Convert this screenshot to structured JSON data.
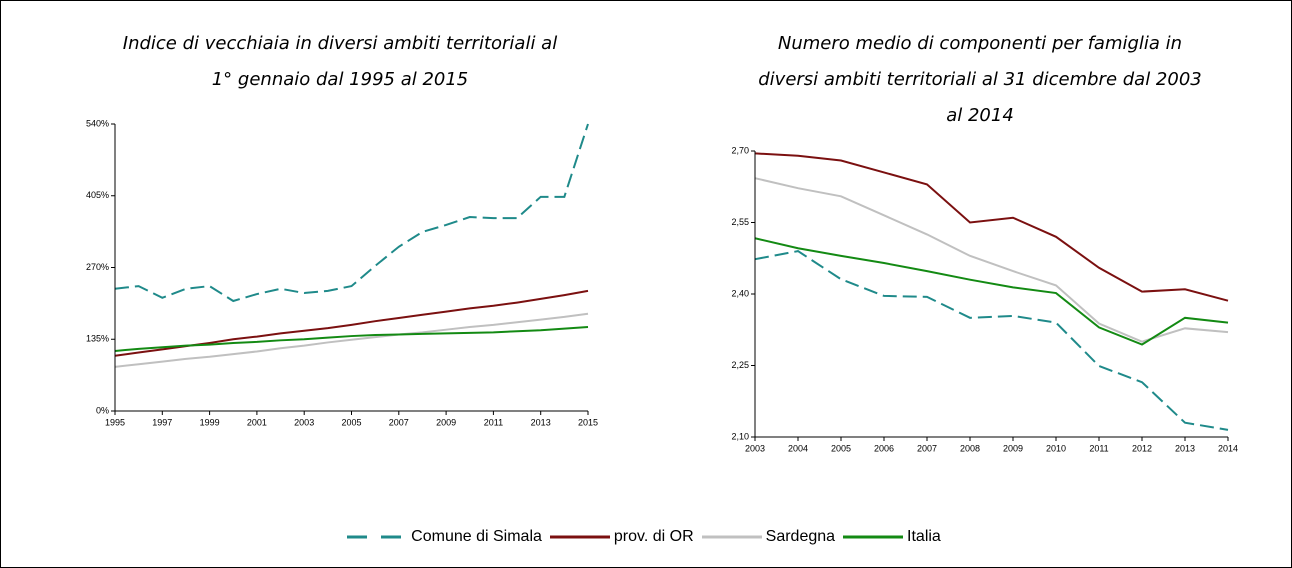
{
  "chart_data": [
    {
      "type": "line",
      "title": "Indice di vecchiaia in diversi ambiti territoriali al 1° gennaio dal 1995 al 2015",
      "x": [
        1995,
        1996,
        1997,
        1998,
        1999,
        2000,
        2001,
        2002,
        2003,
        2004,
        2005,
        2006,
        2007,
        2008,
        2009,
        2010,
        2011,
        2012,
        2013,
        2014,
        2015
      ],
      "xlim": [
        1995,
        2015
      ],
      "xticks": [
        1995,
        1997,
        1999,
        2001,
        2003,
        2005,
        2007,
        2009,
        2011,
        2013,
        2015
      ],
      "ylim": [
        0,
        540
      ],
      "yticks": [
        {
          "value": 0,
          "label": "0%"
        },
        {
          "value": 135,
          "label": "135%"
        },
        {
          "value": 270,
          "label": "270%"
        },
        {
          "value": 405,
          "label": "405%"
        },
        {
          "value": 540,
          "label": "540%"
        }
      ],
      "series": [
        {
          "name": "Comune di Simala",
          "color": "#1f8a8a",
          "style": "dashed",
          "values": [
            230,
            235,
            213,
            230,
            235,
            207,
            220,
            230,
            222,
            226,
            235,
            273,
            309,
            337,
            350,
            365,
            363,
            363,
            403,
            403,
            540
          ]
        },
        {
          "name": "prov. di OR",
          "color": "#7b1010",
          "style": "solid",
          "values": [
            104,
            110,
            116,
            122,
            128,
            135,
            140,
            146,
            151,
            156,
            162,
            169,
            175,
            181,
            187,
            193,
            198,
            204,
            211,
            218,
            226
          ]
        },
        {
          "name": "Sardegna",
          "color": "#c0c0c0",
          "style": "solid",
          "values": [
            83,
            88,
            93,
            98,
            102,
            107,
            112,
            118,
            123,
            129,
            134,
            139,
            144,
            148,
            153,
            158,
            162,
            167,
            172,
            177,
            183
          ]
        },
        {
          "name": "Italia",
          "color": "#138a13",
          "style": "solid",
          "values": [
            113,
            117,
            120,
            123,
            125,
            128,
            130,
            133,
            135,
            138,
            141,
            143,
            144,
            145,
            146,
            147,
            148,
            150,
            152,
            155,
            158
          ]
        }
      ]
    },
    {
      "type": "line",
      "title": "Numero medio di componenti per famiglia in diversi ambiti territoriali al 31 dicembre dal 2003 al 2014",
      "x": [
        2003,
        2004,
        2005,
        2006,
        2007,
        2008,
        2009,
        2010,
        2011,
        2012,
        2013,
        2014
      ],
      "xlim": [
        2003,
        2014
      ],
      "xticks": [
        2003,
        2004,
        2005,
        2006,
        2007,
        2008,
        2009,
        2010,
        2011,
        2012,
        2013,
        2014
      ],
      "ylim": [
        2.1,
        2.7
      ],
      "yticks": [
        {
          "value": 2.1,
          "label": "2,10"
        },
        {
          "value": 2.25,
          "label": "2,25"
        },
        {
          "value": 2.4,
          "label": "2,40"
        },
        {
          "value": 2.55,
          "label": "2,55"
        },
        {
          "value": 2.7,
          "label": "2,70"
        }
      ],
      "series": [
        {
          "color": "#1f8a8a",
          "style": "dashed",
          "values": [
            2.473,
            2.49,
            2.431,
            2.396,
            2.394,
            2.35,
            2.354,
            2.34,
            2.249,
            2.215,
            2.13,
            2.115
          ]
        },
        {
          "color": "#7b1010",
          "style": "solid",
          "values": [
            2.695,
            2.69,
            2.68,
            2.655,
            2.63,
            2.55,
            2.56,
            2.52,
            2.455,
            2.405,
            2.41,
            2.386
          ]
        },
        {
          "color": "#c0c0c0",
          "style": "solid",
          "values": [
            2.643,
            2.622,
            2.605,
            2.565,
            2.525,
            2.48,
            2.448,
            2.418,
            2.338,
            2.3,
            2.328,
            2.32
          ]
        },
        {
          "color": "#138a13",
          "style": "solid",
          "values": [
            2.517,
            2.496,
            2.48,
            2.465,
            2.448,
            2.43,
            2.414,
            2.402,
            2.33,
            2.294,
            2.35,
            2.34
          ]
        }
      ]
    }
  ]
}
